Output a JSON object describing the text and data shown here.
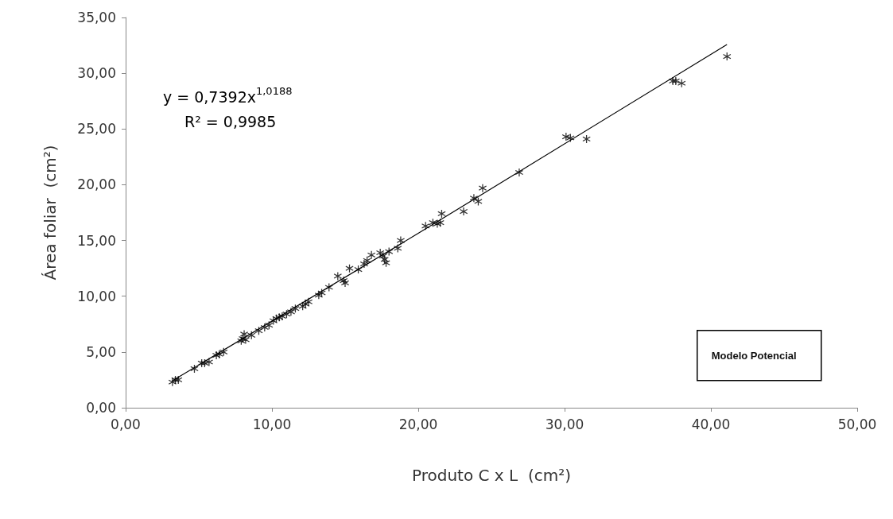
{
  "chart_data": {
    "type": "scatter",
    "xlabel": "Produto C x L  (cm²)",
    "ylabel": "Área foliar  (cm²)",
    "xlim": [
      0,
      50
    ],
    "xticks": [
      {
        "value": 0,
        "label": "0,00"
      },
      {
        "value": 10,
        "label": "10,00"
      },
      {
        "value": 20,
        "label": "20,00"
      },
      {
        "value": 30,
        "label": "30,00"
      },
      {
        "value": 40,
        "label": "40,00"
      },
      {
        "value": 50,
        "label": "50,00"
      }
    ],
    "ylim": [
      0,
      35
    ],
    "yticks": [
      {
        "value": 0,
        "label": "0,00"
      },
      {
        "value": 5,
        "label": "5,00"
      },
      {
        "value": 10,
        "label": "10,00"
      },
      {
        "value": 15,
        "label": "15,00"
      },
      {
        "value": 20,
        "label": "20,00"
      },
      {
        "value": 25,
        "label": "25,00"
      },
      {
        "value": 30,
        "label": "30,00"
      },
      {
        "value": 35,
        "label": "35,00"
      }
    ],
    "grid": false,
    "legend": false,
    "marker": "cross",
    "series": [
      {
        "type": "scatter",
        "color": "#000000",
        "x": [
          3.2,
          3.4,
          3.6,
          4.7,
          5.2,
          5.4,
          5.7,
          6.2,
          6.4,
          6.7,
          7.9,
          8.0,
          8.1,
          8.2,
          8.6,
          9.1,
          9.5,
          9.8,
          10.1,
          10.3,
          10.5,
          10.7,
          11.0,
          11.3,
          11.6,
          12.1,
          12.3,
          12.5,
          13.2,
          13.4,
          13.9,
          14.5,
          14.9,
          15.0,
          15.3,
          15.9,
          16.3,
          16.5,
          16.8,
          17.4,
          17.6,
          17.7,
          17.8,
          18.0,
          18.6,
          18.8,
          20.5,
          21.0,
          21.3,
          21.5,
          21.6,
          23.1,
          23.8,
          24.1,
          24.4,
          26.9,
          30.1,
          30.4,
          31.5,
          37.4,
          37.6,
          38.0,
          41.1
        ],
        "values": [
          2.3,
          2.5,
          2.5,
          3.5,
          4.0,
          4.0,
          4.1,
          4.7,
          4.8,
          5.0,
          6.0,
          6.2,
          6.6,
          6.1,
          6.5,
          6.9,
          7.2,
          7.4,
          7.8,
          8.0,
          8.1,
          8.2,
          8.4,
          8.6,
          8.9,
          9.1,
          9.3,
          9.5,
          10.1,
          10.3,
          10.8,
          11.8,
          11.4,
          11.2,
          12.5,
          12.4,
          12.9,
          13.2,
          13.7,
          13.9,
          13.6,
          13.3,
          13.0,
          14.0,
          14.3,
          15.0,
          16.3,
          16.6,
          16.5,
          16.6,
          17.4,
          17.6,
          18.8,
          18.5,
          19.7,
          21.1,
          24.3,
          24.2,
          24.1,
          29.3,
          29.3,
          29.1,
          31.5
        ]
      },
      {
        "type": "line",
        "color": "#000000",
        "marker": "none",
        "x": [
          3.2,
          20,
          41.1
        ],
        "values": [
          2.42,
          15.64,
          32.58
        ]
      }
    ],
    "annotations": [
      "y = 0,7392x$^{1,0188}$",
      "R² = 0,9985",
      "Modelo Potencial"
    ]
  }
}
